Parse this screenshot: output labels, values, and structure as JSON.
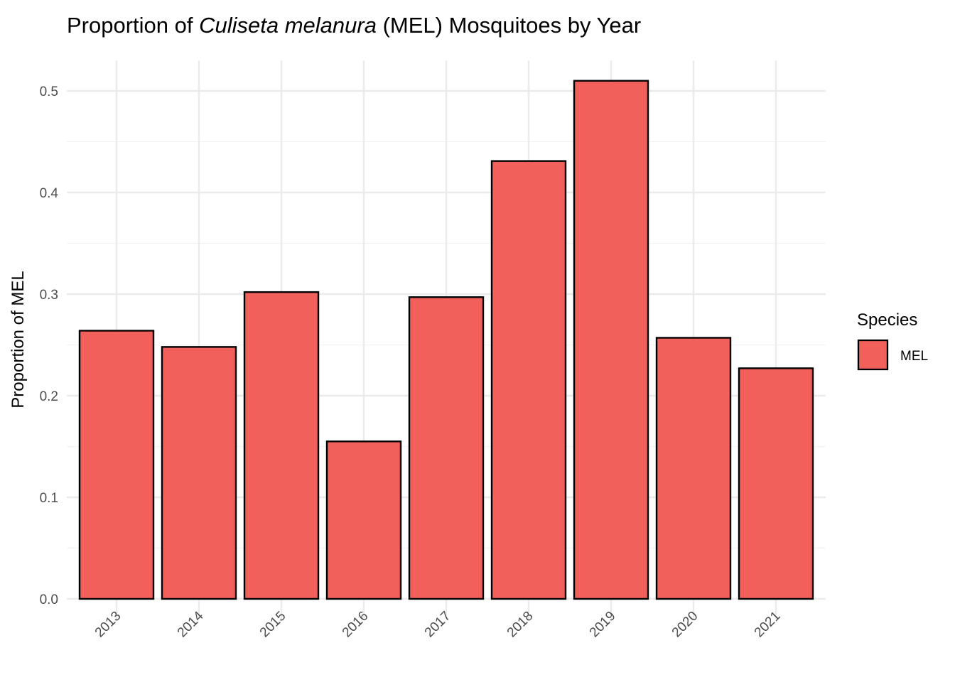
{
  "chart_data": {
    "type": "bar",
    "title": {
      "prefix": "Proportion of ",
      "italic": "Culiseta melanura",
      "suffix": " (MEL) Mosquitoes by Year"
    },
    "xlabel": "",
    "ylabel": "Proportion of MEL",
    "categories": [
      "2013",
      "2014",
      "2015",
      "2016",
      "2017",
      "2018",
      "2019",
      "2020",
      "2021"
    ],
    "series": [
      {
        "name": "MEL",
        "values": [
          0.264,
          0.248,
          0.302,
          0.155,
          0.297,
          0.431,
          0.51,
          0.257,
          0.227
        ],
        "color": "#F2605C",
        "stroke": "#000000"
      }
    ],
    "ylim": [
      0,
      0.53
    ],
    "yticks": [
      "0.0",
      "0.1",
      "0.2",
      "0.3",
      "0.4",
      "0.5"
    ],
    "grid": true,
    "legend": {
      "title": "Species",
      "position": "right",
      "entries": [
        "MEL"
      ]
    },
    "colors": {
      "bar_fill": "#F2605C",
      "bar_stroke": "#000000",
      "grid_major": "#EBEBEB",
      "grid_minor": "#F2F2F2",
      "tick_text": "#4D4D4D"
    }
  }
}
